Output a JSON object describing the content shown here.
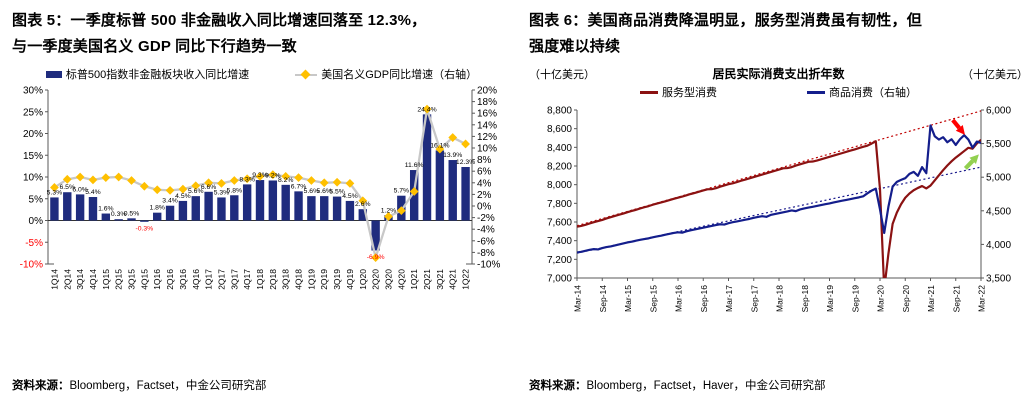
{
  "left_panel": {
    "title_line1": "图表 5：一季度标普 500 非金融收入同比增速回落至 12.3%，",
    "title_line2": "与一季度美国名义 GDP 同比下行趋势一致",
    "source_label": "资料来源：",
    "source_text": "Bloomberg，Factset，中金公司研究部"
  },
  "right_panel": {
    "title_line1": "图表 6：美国商品消费降温明显，服务型消费虽有韧性，但",
    "title_line2": "强度难以持续",
    "unit_left": "（十亿美元）",
    "unit_right": "（十亿美元）",
    "chart_heading": "居民实际消费支出折年数",
    "source_label": "资料来源：",
    "source_text": "Bloomberg，Factset，Haver，中金公司研究部"
  },
  "chart_data": [
    {
      "type": "bar",
      "title": "一季度标普500非金融收入同比增速回落至12.3%，与一季度美国名义GDP同比下行趋势一致",
      "categories": [
        "1Q14",
        "2Q14",
        "3Q14",
        "4Q14",
        "1Q15",
        "2Q15",
        "3Q15",
        "4Q15",
        "1Q16",
        "2Q16",
        "3Q16",
        "4Q16",
        "1Q17",
        "2Q17",
        "3Q17",
        "4Q17",
        "1Q18",
        "2Q18",
        "3Q18",
        "4Q18",
        "1Q19",
        "2Q19",
        "3Q19",
        "4Q19",
        "1Q20",
        "2Q20",
        "3Q20",
        "4Q20",
        "1Q21",
        "2Q21",
        "3Q21",
        "4Q21",
        "1Q22"
      ],
      "series": [
        {
          "name": "标普500指数非金融板块收入同比增速",
          "type": "bar",
          "axis": "left",
          "color": "#1F2C7E",
          "values": [
            5.3,
            6.5,
            6.0,
            5.4,
            1.6,
            0.3,
            0.5,
            -0.3,
            1.8,
            3.4,
            4.5,
            5.6,
            6.6,
            5.3,
            5.8,
            8.3,
            9.3,
            9.2,
            8.2,
            6.7,
            5.6,
            5.6,
            5.5,
            4.5,
            2.6,
            -6.9,
            1.2,
            5.7,
            11.6,
            24.4,
            16.1,
            13.9,
            12.3
          ]
        },
        {
          "name": "美国名义GDP同比增速（右轴）",
          "type": "line",
          "axis": "right",
          "line_color": "#C8C8C8",
          "marker_color": "#FFC000",
          "values": [
            3.2,
            4.6,
            5.0,
            4.5,
            4.9,
            5.0,
            4.4,
            3.4,
            2.8,
            2.7,
            2.9,
            3.5,
            4.0,
            3.9,
            4.4,
            4.7,
            5.1,
            5.4,
            5.1,
            4.9,
            4.4,
            4.0,
            4.1,
            3.9,
            0.9,
            -8.9,
            -1.8,
            -0.8,
            2.5,
            16.7,
            9.8,
            11.8,
            10.7
          ]
        }
      ],
      "left_axis": {
        "min": -10,
        "max": 30,
        "step": 5,
        "suffix": "%",
        "negatives_red": true
      },
      "right_axis": {
        "min": -10,
        "max": 20,
        "step": 2,
        "suffix": "%",
        "negatives_red": false
      },
      "negative_label_color": "#FF0000",
      "grid": false,
      "legend_position": "top"
    },
    {
      "type": "line",
      "title": "居民实际消费支出折年数",
      "x_labels": [
        "Mar-14",
        "Sep-14",
        "Mar-15",
        "Sep-15",
        "Mar-16",
        "Sep-16",
        "Mar-17",
        "Sep-17",
        "Mar-18",
        "Sep-18",
        "Mar-19",
        "Sep-19",
        "Mar-20",
        "Sep-20",
        "Mar-21",
        "Sep-21",
        "Mar-22"
      ],
      "x_label_step": 6,
      "points": 97,
      "series": [
        {
          "name": "服务型消费",
          "axis": "left",
          "color": "#8B1212",
          "values": [
            7550,
            7558,
            7570,
            7585,
            7598,
            7610,
            7622,
            7638,
            7652,
            7665,
            7678,
            7690,
            7705,
            7718,
            7730,
            7745,
            7758,
            7770,
            7785,
            7798,
            7810,
            7822,
            7835,
            7848,
            7860,
            7872,
            7886,
            7900,
            7912,
            7925,
            7938,
            7950,
            7952,
            7962,
            7978,
            7992,
            8005,
            8015,
            8028,
            8042,
            8055,
            8068,
            8082,
            8095,
            8108,
            8122,
            8135,
            8148,
            8162,
            8175,
            8178,
            8188,
            8205,
            8218,
            8232,
            8245,
            8248,
            8258,
            8272,
            8285,
            8298,
            8312,
            8325,
            8338,
            8352,
            8365,
            8378,
            8392,
            8405,
            8418,
            8440,
            8465,
            7950,
            6880,
            7260,
            7580,
            7700,
            7790,
            7860,
            7905,
            7940,
            7965,
            7985,
            7960,
            7990,
            8045,
            8100,
            8155,
            8205,
            8250,
            8290,
            8325,
            8360,
            8395,
            8385,
            8440,
            8480
          ]
        },
        {
          "name": "商品消费（右轴）",
          "axis": "right",
          "color": "#141E8C",
          "values": [
            3880,
            3890,
            3905,
            3920,
            3930,
            3925,
            3945,
            3960,
            3970,
            3985,
            4000,
            4015,
            4030,
            4040,
            4055,
            4068,
            4080,
            4090,
            4105,
            4118,
            4130,
            4145,
            4158,
            4170,
            4180,
            4175,
            4195,
            4210,
            4222,
            4235,
            4248,
            4262,
            4275,
            4288,
            4300,
            4295,
            4315,
            4330,
            4342,
            4355,
            4368,
            4380,
            4395,
            4408,
            4420,
            4410,
            4438,
            4452,
            4465,
            4478,
            4490,
            4505,
            4495,
            4520,
            4535,
            4548,
            4560,
            4572,
            4585,
            4598,
            4610,
            4625,
            4638,
            4650,
            4662,
            4675,
            4688,
            4700,
            4715,
            4760,
            4800,
            4830,
            4520,
            4170,
            4560,
            4860,
            4930,
            4960,
            4985,
            5050,
            5080,
            5020,
            5150,
            5060,
            5770,
            5610,
            5560,
            5595,
            5520,
            5565,
            5480,
            5565,
            5625,
            5560,
            5440,
            5530,
            5510
          ]
        }
      ],
      "trend_lines": [
        {
          "axis": "left",
          "color": "#C00000",
          "from": [
            0,
            7560
          ],
          "to": [
            96,
            8790
          ]
        },
        {
          "axis": "right",
          "color": "#1A1A8C",
          "from": [
            0,
            3870
          ],
          "to": [
            96,
            5150
          ]
        }
      ],
      "arrows": [
        {
          "axis": "right",
          "x1": 89.3,
          "y1": 5850,
          "x2": 92.2,
          "y2": 5630,
          "color": "#FF0000"
        },
        {
          "axis": "right",
          "x1": 92.3,
          "y1": 5130,
          "x2": 95.5,
          "y2": 5340,
          "color": "#92D050"
        }
      ],
      "left_axis": {
        "min": 7000,
        "max": 8800,
        "step": 200
      },
      "right_axis": {
        "min": 3500,
        "max": 6000,
        "step": 500
      },
      "grid": false,
      "legend_position": "top"
    }
  ]
}
